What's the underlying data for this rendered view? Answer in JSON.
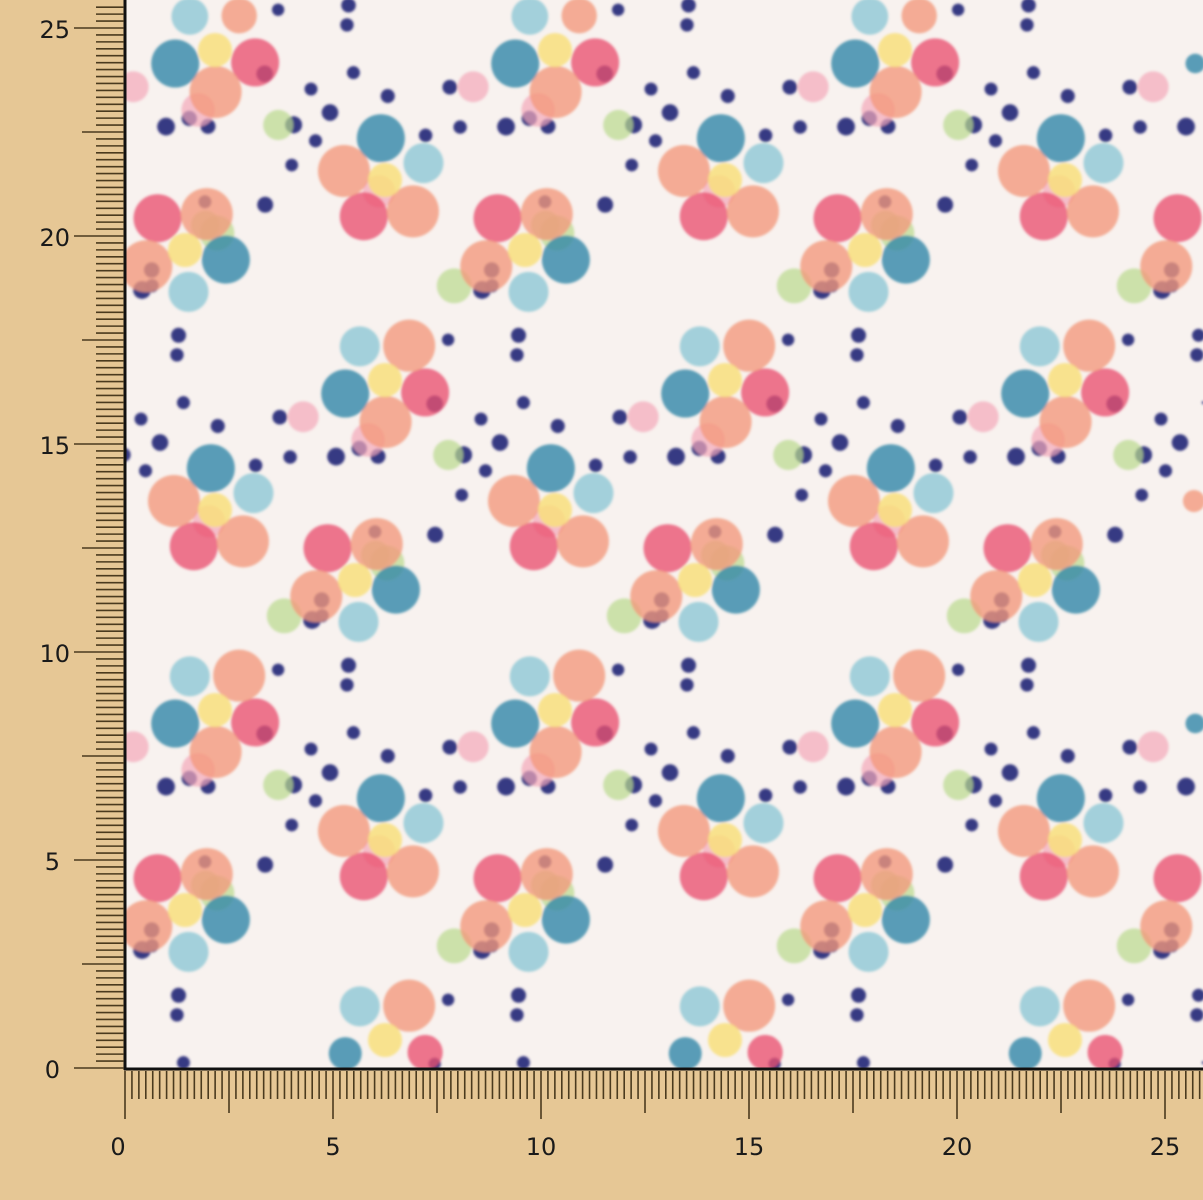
{
  "rulers": {
    "unit_step": 5,
    "range": [
      0,
      25
    ],
    "x_labels": [
      "0",
      "5",
      "10",
      "15",
      "20",
      "25"
    ],
    "y_labels": [
      "0",
      "5",
      "10",
      "15",
      "20",
      "25"
    ]
  },
  "colors": {
    "background": "#e6c795",
    "fabric": "#f8f2ef",
    "ruler_ink": "#4a3a1e",
    "border": "#111111",
    "pink": "#e9506f",
    "salmon": "#f2977b",
    "blue": "#2d84a6",
    "light_blue": "#8ac6d5",
    "yellow": "#f8df7c",
    "navy_dot": "#2d2f7c",
    "green": "#b9da8d",
    "light_pink": "#f3a8b9"
  }
}
